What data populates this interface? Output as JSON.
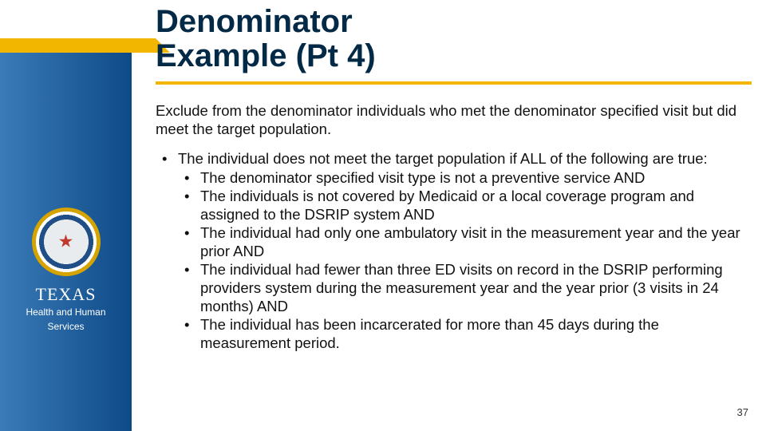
{
  "colors": {
    "sidebar_gradient_from": "#3a7bb8",
    "sidebar_gradient_to": "#0e4a87",
    "gold": "#f2b500",
    "title_color": "#022945",
    "body_text": "#111111",
    "white": "#ffffff"
  },
  "branding": {
    "state": "TEXAS",
    "department_line1": "Health and Human",
    "department_line2": "Services"
  },
  "title_line1": "Denominator",
  "title_line2": "Example (Pt 4)",
  "intro": "Exclude from the denominator individuals who met the denominator specified visit but did meet the target population.",
  "bullet_lead": "The individual does not meet the target population if ALL of the following are true:",
  "sub_bullets": [
    "The denominator specified visit type is not a preventive service AND",
    "The individuals is not covered by Medicaid or a local coverage program and assigned to the DSRIP system AND",
    "The individual had only one ambulatory visit in the measurement year and the year prior AND",
    "The individual had fewer than three ED visits on record in the DSRIP performing providers system during the measurement year and the year prior (3 visits in 24 months) AND",
    "The individual has been incarcerated for more than 45 days during the measurement period."
  ],
  "page_number": "37"
}
